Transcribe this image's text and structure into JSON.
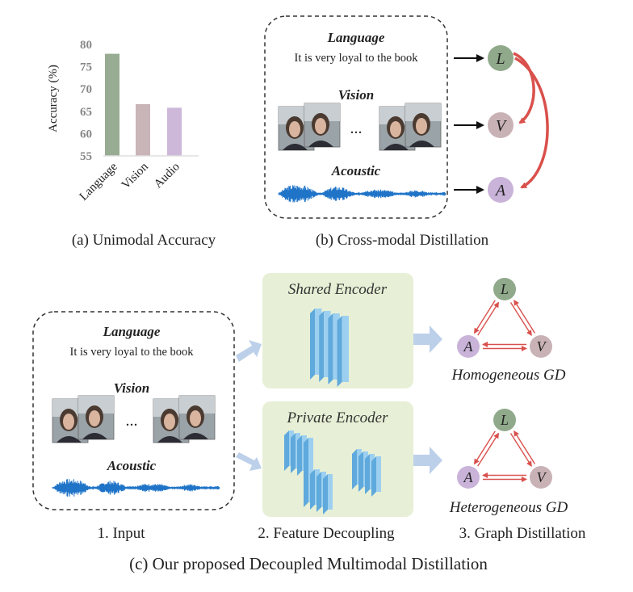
{
  "panel_a": {
    "caption": "(a) Unimodal Accuracy",
    "chart_data": {
      "type": "bar",
      "categories": [
        "Language",
        "Vision",
        "Audio"
      ],
      "values": [
        77.9,
        66.6,
        65.8
      ],
      "ylabel": "Accuracy (%)",
      "xlabel": "",
      "yticks": [
        "55",
        "60",
        "65",
        "70",
        "75",
        "80"
      ],
      "ylim": [
        55,
        80
      ],
      "grid": false,
      "colors": [
        "#97ac92",
        "#c9b4b7",
        "#cdb8da"
      ]
    }
  },
  "panel_b": {
    "caption": "(b) Cross-modal Distillation",
    "language_label": "Language",
    "language_text": "It is very loyal to the book",
    "vision_label": "Vision",
    "ellipsis": "...",
    "acoustic_label": "Acoustic",
    "nodes": {
      "L": "L",
      "V": "V",
      "A": "A"
    }
  },
  "panel_c": {
    "caption": "(c) Our proposed Decoupled Multimodal Distillation",
    "input": {
      "label": "1. Input",
      "language_label": "Language",
      "language_text": "It is very loyal to the book",
      "vision_label": "Vision",
      "ellipsis": "...",
      "acoustic_label": "Acoustic"
    },
    "decoupling": {
      "label": "2. Feature Decoupling",
      "shared_title": "Shared  Encoder",
      "private_title": "Private Encoder"
    },
    "graph": {
      "label": "3. Graph Distillation",
      "homogeneous": "Homogeneous  GD",
      "heterogeneous": "Heterogeneous  GD",
      "nodes": {
        "L": "L",
        "V": "V",
        "A": "A"
      }
    }
  },
  "colors": {
    "language_node": "#8fa98a",
    "vision_node": "#c9b2b6",
    "audio_node": "#c9b3d9",
    "distill_arrow": "#d9504c",
    "flow_arrow": "#bcd0ea",
    "encoder_bg": "#e7f0d6",
    "waveform": "#1f74c8"
  }
}
